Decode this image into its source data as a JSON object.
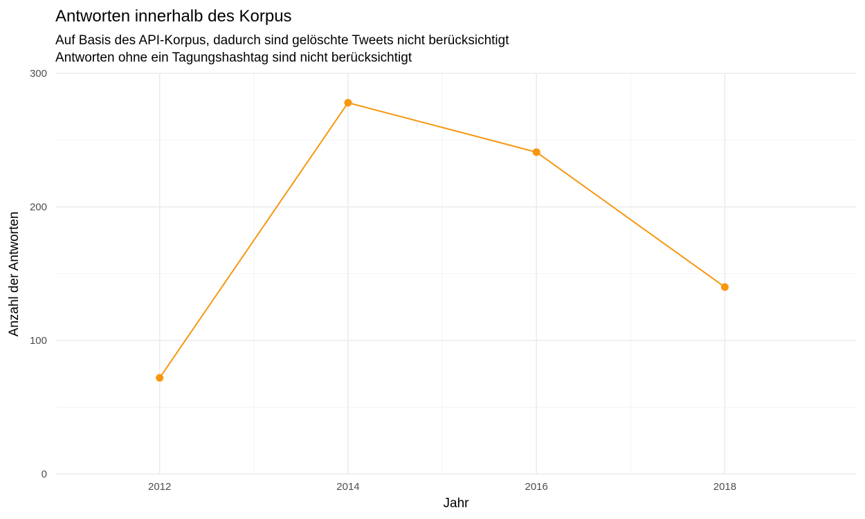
{
  "chart_data": {
    "type": "line",
    "title": "Antworten innerhalb des Korpus",
    "subtitle": [
      "Auf Basis des API-Korpus, dadurch sind gelöschte Tweets nicht berücksichtigt",
      "Antworten ohne ein Tagungshashtag sind nicht berücksichtigt"
    ],
    "xlabel": "Jahr",
    "ylabel": "Anzahl der Antworten",
    "x": [
      2012,
      2014,
      2016,
      2018
    ],
    "series": [
      {
        "values": [
          72,
          278,
          241,
          140
        ]
      }
    ],
    "xlim": [
      2010.9,
      2019.4
    ],
    "ylim": [
      0,
      300
    ],
    "x_ticks": [
      2012,
      2014,
      2016,
      2018
    ],
    "y_ticks": [
      0,
      100,
      200,
      300
    ],
    "x_tick_labels": [
      "2012",
      "2014",
      "2016",
      "2018"
    ],
    "y_tick_labels": [
      "0",
      "100",
      "200",
      "300"
    ],
    "grid": true,
    "legend": "none",
    "colors": {
      "line": "#f7970e",
      "point": "#f7970e",
      "grid_major": "#ebebeb",
      "grid_minor": "#f3f3f3",
      "tick_text": "#4d4d4d"
    }
  }
}
